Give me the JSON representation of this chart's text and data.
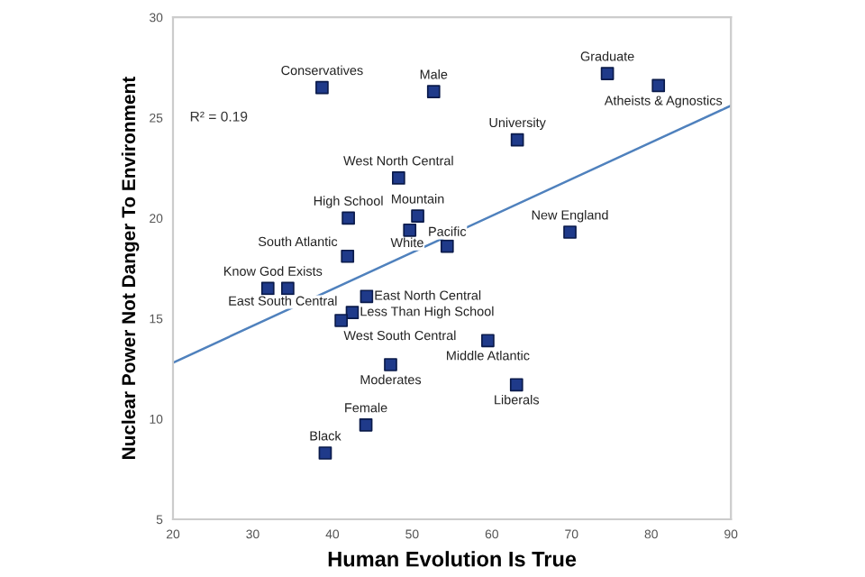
{
  "chart_data": {
    "type": "scatter",
    "xlabel": "Human Evolution Is True",
    "ylabel": "Nuclear Power Not Danger To Environment",
    "xlim": [
      20,
      90
    ],
    "ylim": [
      5,
      30
    ],
    "xticks": [
      20,
      30,
      40,
      50,
      60,
      70,
      80,
      90
    ],
    "yticks": [
      5,
      10,
      15,
      20,
      25,
      30
    ],
    "grid": false,
    "series": [
      {
        "marker": "square",
        "color": "#1f3a8a",
        "x": [
          38.7,
          52.7,
          48.3,
          42.0,
          50.7,
          49.7,
          41.9,
          54.4,
          74.5,
          80.9,
          63.2,
          69.8,
          31.9,
          34.4,
          44.3,
          42.5,
          41.1,
          47.3,
          44.2,
          39.1,
          59.5,
          63.1
        ],
        "values": [
          26.5,
          26.3,
          22.0,
          20.0,
          20.1,
          19.4,
          18.1,
          18.6,
          27.2,
          26.6,
          23.9,
          19.3,
          16.5,
          16.5,
          16.1,
          15.3,
          14.9,
          12.7,
          9.7,
          8.3,
          13.9,
          11.7
        ]
      },
      {
        "type": "line",
        "color": "#4f81bd",
        "x": [
          20,
          90
        ],
        "values": [
          12.8,
          25.6
        ]
      }
    ],
    "annotations": [
      {
        "text": "Conservatives",
        "x": 38.7,
        "y": 26.5
      },
      {
        "text": "Male",
        "x": 52.7,
        "y": 26.3
      },
      {
        "text": "West North Central",
        "x": 48.3,
        "y": 22.0
      },
      {
        "text": "High School",
        "x": 42.0,
        "y": 20.0
      },
      {
        "text": "Mountain",
        "x": 50.7,
        "y": 20.1
      },
      {
        "text": "White",
        "x": 49.7,
        "y": 19.4
      },
      {
        "text": "South Atlantic",
        "x": 41.9,
        "y": 18.1
      },
      {
        "text": "Pacific",
        "x": 54.4,
        "y": 18.6
      },
      {
        "text": "Graduate",
        "x": 74.5,
        "y": 27.2
      },
      {
        "text": "Atheists & Agnostics",
        "x": 80.9,
        "y": 26.6
      },
      {
        "text": "University",
        "x": 63.2,
        "y": 23.9
      },
      {
        "text": "New England",
        "x": 69.8,
        "y": 19.3
      },
      {
        "text": "Know God Exists",
        "x": 31.9,
        "y": 16.5
      },
      {
        "text": "East South Central",
        "x": 34.4,
        "y": 16.5
      },
      {
        "text": "East North Central",
        "x": 44.3,
        "y": 16.1
      },
      {
        "text": "Less Than High School",
        "x": 42.5,
        "y": 15.3
      },
      {
        "text": "West South Central",
        "x": 41.1,
        "y": 14.9
      },
      {
        "text": "Moderates",
        "x": 47.3,
        "y": 12.7
      },
      {
        "text": "Female",
        "x": 44.2,
        "y": 9.7
      },
      {
        "text": "Black",
        "x": 39.1,
        "y": 8.3
      },
      {
        "text": "Middle Atlantic",
        "x": 59.5,
        "y": 13.9
      },
      {
        "text": "Liberals",
        "x": 63.1,
        "y": 11.7
      },
      "R² = 0.19"
    ]
  }
}
